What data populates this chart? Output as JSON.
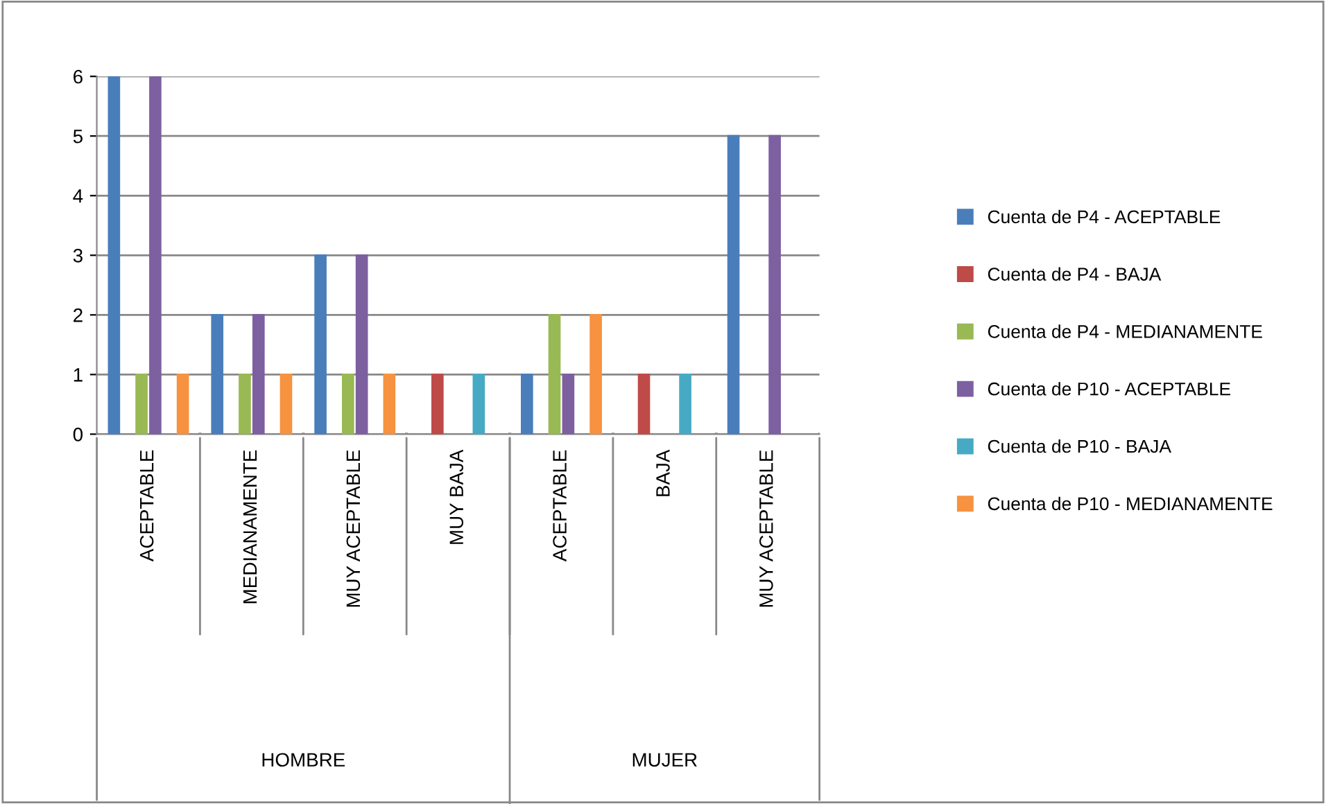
{
  "chart_data": {
    "type": "bar",
    "categories": [
      "ACEPTABLE",
      "MEDIANAMENTE",
      "MUY ACEPTABLE",
      "MUY BAJA",
      "ACEPTABLE",
      "BAJA",
      "MUY ACEPTABLE"
    ],
    "series": [
      {
        "name": "Cuenta de P4 - ACEPTABLE",
        "color": "#4a7ebb",
        "values": [
          6,
          2,
          3,
          null,
          1,
          null,
          5
        ]
      },
      {
        "name": "Cuenta de P4 - BAJA",
        "color": "#be4b48",
        "values": [
          null,
          null,
          null,
          1,
          null,
          1,
          null
        ]
      },
      {
        "name": "Cuenta de P4 - MEDIANAMENTE",
        "color": "#98b954",
        "values": [
          1,
          1,
          1,
          null,
          2,
          null,
          null
        ]
      },
      {
        "name": "Cuenta de P10 - ACEPTABLE",
        "color": "#7d60a0",
        "values": [
          6,
          2,
          3,
          null,
          1,
          null,
          5
        ]
      },
      {
        "name": "Cuenta de P10 - BAJA",
        "color": "#46aac5",
        "values": [
          null,
          null,
          null,
          1,
          null,
          1,
          null
        ]
      },
      {
        "name": "Cuenta de P10 - MEDIANAMENTE",
        "color": "#f69240",
        "values": [
          1,
          1,
          1,
          null,
          2,
          null,
          null
        ]
      }
    ],
    "annotations": [
      "HOMBRE",
      "MUJER"
    ],
    "ylim": [
      0,
      6
    ],
    "yticks": [
      0,
      1,
      2,
      3,
      4,
      5,
      6
    ],
    "grid": "y",
    "legend": "right"
  }
}
